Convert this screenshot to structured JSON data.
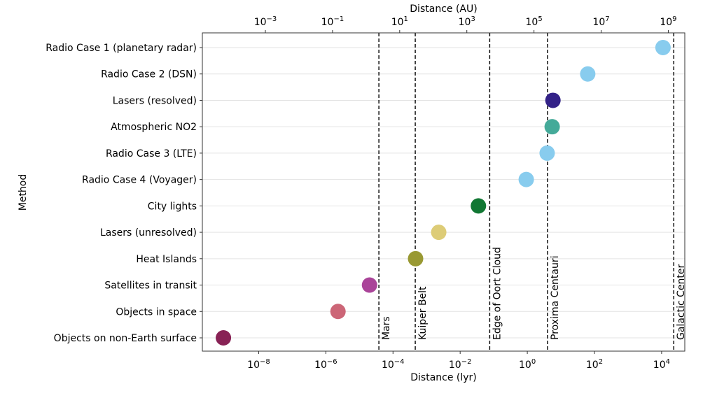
{
  "chart_data": {
    "type": "scatter",
    "title": "",
    "xlabel": "Distance (lyr)",
    "x2label": "Distance (AU)",
    "ylabel": "Method",
    "xscale": "log",
    "xlim": [
      2.1e-10,
      49000
    ],
    "au_per_lyr": 63241,
    "xticks": [
      1e-08,
      1e-06,
      0.0001,
      0.01,
      1,
      100,
      10000
    ],
    "xtick_labels": [
      [
        "10",
        "−8"
      ],
      [
        "10",
        "−6"
      ],
      [
        "10",
        "−4"
      ],
      [
        "10",
        "−2"
      ],
      [
        "10",
        "0"
      ],
      [
        "10",
        "2"
      ],
      [
        "10",
        "4"
      ]
    ],
    "x2ticks": [
      0.001,
      0.1,
      10,
      1000,
      100000,
      10000000,
      1000000000
    ],
    "x2tick_labels": [
      [
        "10",
        "−3"
      ],
      [
        "10",
        "−1"
      ],
      [
        "10",
        "1"
      ],
      [
        "10",
        "3"
      ],
      [
        "10",
        "5"
      ],
      [
        "10",
        "7"
      ],
      [
        "10",
        "9"
      ]
    ],
    "grid": "horizontal",
    "categories": [
      "Radio Case 1 (planetary radar)",
      "Radio Case 2 (DSN)",
      "Lasers (resolved)",
      "Atmospheric NO2",
      "Radio Case 3 (LTE)",
      "Radio Case 4 (Voyager)",
      "City lights",
      "Lasers (unresolved)",
      "Heat Islands",
      "Satellites in transit",
      "Objects in space",
      "Objects on non-Earth surface"
    ],
    "points": [
      {
        "category": "Radio Case 1 (planetary radar)",
        "x": 11000,
        "color": "#88CCEE"
      },
      {
        "category": "Radio Case 2 (DSN)",
        "x": 63,
        "color": "#88CCEE"
      },
      {
        "category": "Lasers (resolved)",
        "x": 5.8,
        "color": "#332288"
      },
      {
        "category": "Atmospheric NO2",
        "x": 5.5,
        "color": "#44AA99"
      },
      {
        "category": "Radio Case 3 (LTE)",
        "x": 3.9,
        "color": "#88CCEE"
      },
      {
        "category": "Radio Case 4 (Voyager)",
        "x": 0.93,
        "color": "#88CCEE"
      },
      {
        "category": "City lights",
        "x": 0.035,
        "color": "#117733"
      },
      {
        "category": "Lasers (unresolved)",
        "x": 0.0023,
        "color": "#DDCC77"
      },
      {
        "category": "Heat Islands",
        "x": 0.00047,
        "color": "#999933"
      },
      {
        "category": "Satellites in transit",
        "x": 2e-05,
        "color": "#AA4499"
      },
      {
        "category": "Objects in space",
        "x": 2.3e-06,
        "color": "#CC6677"
      },
      {
        "category": "Objects on non-Earth surface",
        "x": 8.9e-10,
        "color": "#882255"
      }
    ],
    "reference_lines": [
      {
        "label": "Mars",
        "x": 3.8e-05
      },
      {
        "label": "Kuiper Belt",
        "x": 0.00046
      },
      {
        "label": "Edge of Oort Cloud",
        "x": 0.076
      },
      {
        "label": "Proxima Centauri",
        "x": 4.0
      },
      {
        "label": "Galactic Center",
        "x": 23000
      }
    ]
  }
}
